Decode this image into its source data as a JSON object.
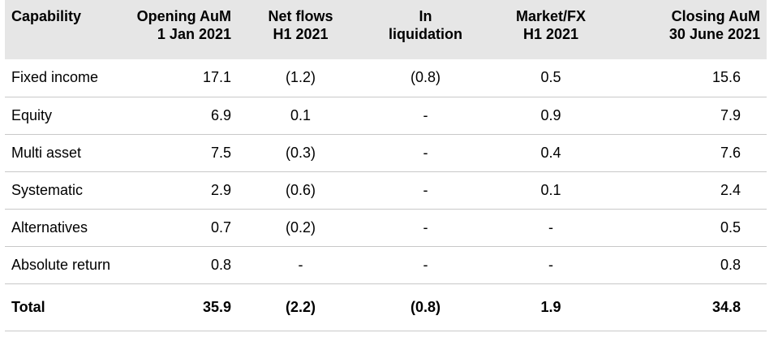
{
  "table": {
    "headers": [
      [
        "Capability"
      ],
      [
        "Opening AuM",
        "1 Jan 2021"
      ],
      [
        "Net flows",
        "H1 2021"
      ],
      [
        "In",
        "liquidation"
      ],
      [
        "Market/FX",
        "H1 2021"
      ],
      [
        "Closing AuM",
        "30 June 2021"
      ]
    ],
    "rows": [
      [
        "Fixed income",
        "17.1",
        "(1.2)",
        "(0.8)",
        "0.5",
        "15.6"
      ],
      [
        "Equity",
        "6.9",
        "0.1",
        "-",
        "0.9",
        "7.9"
      ],
      [
        "Multi asset",
        "7.5",
        "(0.3)",
        "-",
        "0.4",
        "7.6"
      ],
      [
        "Systematic",
        "2.9",
        "(0.6)",
        "-",
        "0.1",
        "2.4"
      ],
      [
        "Alternatives",
        "0.7",
        "(0.2)",
        "-",
        "-",
        "0.5"
      ],
      [
        "Absolute return",
        "0.8",
        "-",
        "-",
        "-",
        "0.8"
      ]
    ],
    "total": [
      "Total",
      "35.9",
      "(2.2)",
      "(0.8)",
      "1.9",
      "34.8"
    ]
  },
  "colors": {
    "header_background": "#e6e6e6",
    "row_divider": "#c8c8c8",
    "text": "#000000"
  }
}
